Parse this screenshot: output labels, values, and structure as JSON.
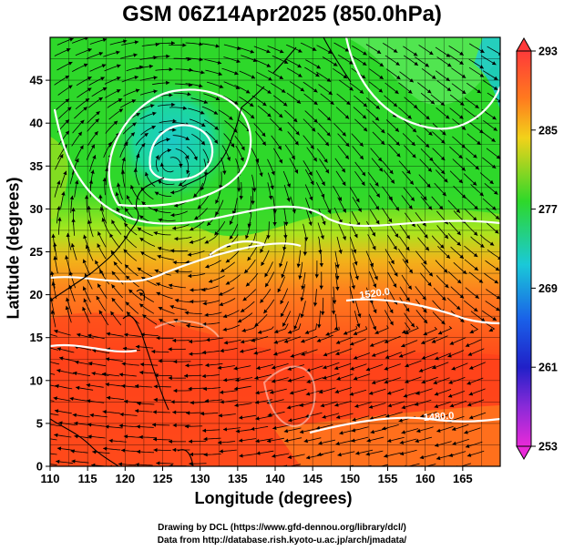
{
  "title": "GSM 06Z14Apr2025 (850.0hPa)",
  "x_axis": {
    "label": "Longitude (degrees)",
    "ticks": [
      "110",
      "115",
      "120",
      "125",
      "130",
      "135",
      "140",
      "145",
      "150",
      "155",
      "160",
      "165"
    ]
  },
  "y_axis": {
    "label": "Latitude (degrees)",
    "ticks": [
      "0",
      "5",
      "10",
      "15",
      "20",
      "25",
      "30",
      "35",
      "40",
      "45"
    ]
  },
  "colorbar": {
    "ticks": [
      "293",
      "285",
      "277",
      "269",
      "261",
      "253"
    ],
    "min": 253,
    "max": 293
  },
  "contour_labels": [
    "1520.0",
    "1480.0"
  ],
  "credits": {
    "line1": "Drawing by DCL (https://www.gfd-dennou.org/library/dcl/)",
    "line2": "Data from http://database.rish.kyoto-u.ac.jp/arch/jmadata/"
  },
  "colors": {
    "warm": "#ff3a1a",
    "orange": "#ff7a1e",
    "yellow": "#f2d21a",
    "green": "#2ed82a",
    "light_green": "#a6f01e",
    "cyan": "#1ac9d8",
    "contour": "#ffffff",
    "streamline": "#000000",
    "coastline": "#000000"
  }
}
